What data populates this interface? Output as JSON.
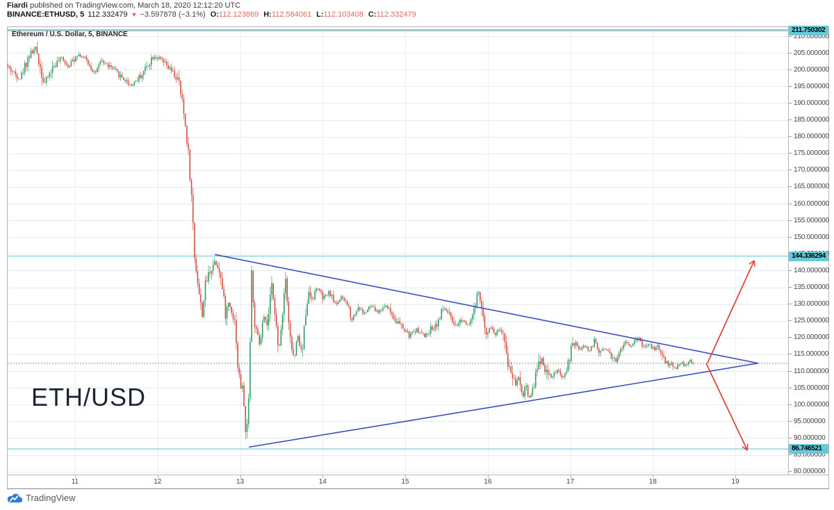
{
  "header": {
    "byline_author": "Fiardi",
    "byline_rest": " published on TradingView.com, March 18, 2020 12:12:20 UTC",
    "quote": {
      "symbol": "BINANCE:ETHUSD, 5",
      "last": "112.332479",
      "direction_icon": "▼",
      "change": "−3.597878 (−3.1%)",
      "ohlc": [
        {
          "label": "O:",
          "value": "112.123869"
        },
        {
          "label": "H:",
          "value": "112.584061"
        },
        {
          "label": "L:",
          "value": "112.103408"
        },
        {
          "label": "C:",
          "value": "112.332479"
        }
      ]
    }
  },
  "chart": {
    "title": "Ethereum / U.S. Dollar, 5, BINANCE",
    "watermark": "ETH/USD"
  },
  "footer": {
    "logo_text": "TradingView"
  },
  "colors": {
    "up": "#2e9b64",
    "down": "#d24f43",
    "trendline": "#3b4cc0",
    "arrow": "#e2453b",
    "level_line": "#79ccd6",
    "level_line_top": "#93bec4",
    "current_dotted": "#6fa287",
    "highlight_bg": "#66cbd6",
    "grid_h": "#e2eff0",
    "grid_v": "#e9eef2",
    "axis_text": "#40434a",
    "border": "#b2b5be"
  },
  "chart_data": {
    "type": "candlestick",
    "title": "Ethereum / U.S. Dollar, 5, BINANCE",
    "symbol": "BINANCE:ETHUSD",
    "interval_minutes": 5,
    "x_axis": {
      "ticks": [
        "11",
        "12",
        "13",
        "14",
        "15",
        "16",
        "17",
        "18",
        "19"
      ],
      "unit": "March 2020 day",
      "day_range": [
        10.183,
        19.639
      ],
      "gridlines": true
    },
    "y_axis": {
      "tick_min": 80,
      "tick_max": 210,
      "tick_step": 5,
      "decimals": 6,
      "price_range": [
        79.1,
        212.3
      ],
      "gridlines": true
    },
    "levels": [
      {
        "price": 211.750302,
        "label": "211.750302"
      },
      {
        "price": 144.336294,
        "label": "144.336294"
      },
      {
        "price": 86.746521,
        "label": "86.746521"
      }
    ],
    "current_price": {
      "price": 112.332479,
      "style": "dotted"
    },
    "candle_step_day": 0.0187,
    "price_path_day_price": [
      [
        10.183,
        201.5
      ],
      [
        10.267,
        199.2
      ],
      [
        10.352,
        197.3
      ],
      [
        10.453,
        204.0
      ],
      [
        10.545,
        206.5
      ],
      [
        10.604,
        200.0
      ],
      [
        10.646,
        195.8
      ],
      [
        10.756,
        201.0
      ],
      [
        10.857,
        203.5
      ],
      [
        10.941,
        201.0
      ],
      [
        11.042,
        204.8
      ],
      [
        11.152,
        203.0
      ],
      [
        11.261,
        199.0
      ],
      [
        11.345,
        202.5
      ],
      [
        11.463,
        200.5
      ],
      [
        11.573,
        198.0
      ],
      [
        11.699,
        195.3
      ],
      [
        11.825,
        198.5
      ],
      [
        11.968,
        204.3
      ],
      [
        12.078,
        202.5
      ],
      [
        12.204,
        199.0
      ],
      [
        12.272,
        196.5
      ],
      [
        12.331,
        188.0
      ],
      [
        12.389,
        176.0
      ],
      [
        12.44,
        158.0
      ],
      [
        12.465,
        144.5
      ],
      [
        12.499,
        138.0
      ],
      [
        12.532,
        131.0
      ],
      [
        12.558,
        126.8
      ],
      [
        12.6,
        136.0
      ],
      [
        12.65,
        140.0
      ],
      [
        12.709,
        142.8
      ],
      [
        12.768,
        140.5
      ],
      [
        12.811,
        133.0
      ],
      [
        12.844,
        126.5
      ],
      [
        12.878,
        130.5
      ],
      [
        12.928,
        127.0
      ],
      [
        12.962,
        124.0
      ],
      [
        12.987,
        112.0
      ],
      [
        13.021,
        106.0
      ],
      [
        13.046,
        104.5
      ],
      [
        13.071,
        99.0
      ],
      [
        13.088,
        88.5
      ],
      [
        13.113,
        97.0
      ],
      [
        13.139,
        118.0
      ],
      [
        13.156,
        141.5
      ],
      [
        13.181,
        127.5
      ],
      [
        13.206,
        122.0
      ],
      [
        13.257,
        117.3
      ],
      [
        13.299,
        126.0
      ],
      [
        13.341,
        123.0
      ],
      [
        13.366,
        127.0
      ],
      [
        13.4,
        135.5
      ],
      [
        13.442,
        128.0
      ],
      [
        13.484,
        114.0
      ],
      [
        13.518,
        124.0
      ],
      [
        13.568,
        138.5
      ],
      [
        13.611,
        124.0
      ],
      [
        13.644,
        116.0
      ],
      [
        13.678,
        113.8
      ],
      [
        13.712,
        121.0
      ],
      [
        13.745,
        117.0
      ],
      [
        13.771,
        114.9
      ],
      [
        13.804,
        126.0
      ],
      [
        13.838,
        133.0
      ],
      [
        13.905,
        132.0
      ],
      [
        13.956,
        135.3
      ],
      [
        14.023,
        131.5
      ],
      [
        14.099,
        133.5
      ],
      [
        14.175,
        130.0
      ],
      [
        14.242,
        131.8
      ],
      [
        14.309,
        130.5
      ],
      [
        14.377,
        125.6
      ],
      [
        14.453,
        129.3
      ],
      [
        14.52,
        127.0
      ],
      [
        14.604,
        129.5
      ],
      [
        14.688,
        127.5
      ],
      [
        14.789,
        129.8
      ],
      [
        14.873,
        126.3
      ],
      [
        14.983,
        123.0
      ],
      [
        15.067,
        120.5
      ],
      [
        15.152,
        122.5
      ],
      [
        15.253,
        120.3
      ],
      [
        15.337,
        122.8
      ],
      [
        15.404,
        124.2
      ],
      [
        15.489,
        129.0
      ],
      [
        15.556,
        126.5
      ],
      [
        15.615,
        122.5
      ],
      [
        15.699,
        125.5
      ],
      [
        15.783,
        124.0
      ],
      [
        15.851,
        127.5
      ],
      [
        15.91,
        134.0
      ],
      [
        15.952,
        126.5
      ],
      [
        15.994,
        121.5
      ],
      [
        16.044,
        123.5
      ],
      [
        16.112,
        121.0
      ],
      [
        16.162,
        123.0
      ],
      [
        16.213,
        119.5
      ],
      [
        16.255,
        113.0
      ],
      [
        16.305,
        109.5
      ],
      [
        16.356,
        106.5
      ],
      [
        16.398,
        109.0
      ],
      [
        16.44,
        101.8
      ],
      [
        16.482,
        106.5
      ],
      [
        16.515,
        101.5
      ],
      [
        16.549,
        103.5
      ],
      [
        16.591,
        108.0
      ],
      [
        16.633,
        111.5
      ],
      [
        16.667,
        114.5
      ],
      [
        16.709,
        110.5
      ],
      [
        16.751,
        109.0
      ],
      [
        16.81,
        108.3
      ],
      [
        16.861,
        110.5
      ],
      [
        16.92,
        107.5
      ],
      [
        16.979,
        111.0
      ],
      [
        17.029,
        116.0
      ],
      [
        17.072,
        118.3
      ],
      [
        17.13,
        116.5
      ],
      [
        17.198,
        117.5
      ],
      [
        17.257,
        116.0
      ],
      [
        17.316,
        119.5
      ],
      [
        17.366,
        115.5
      ],
      [
        17.425,
        117.0
      ],
      [
        17.484,
        115.8
      ],
      [
        17.535,
        114.0
      ],
      [
        17.577,
        112.8
      ],
      [
        17.619,
        116.0
      ],
      [
        17.678,
        119.5
      ],
      [
        17.737,
        117.5
      ],
      [
        17.787,
        118.5
      ],
      [
        17.846,
        119.8
      ],
      [
        17.914,
        117.0
      ],
      [
        17.973,
        118.0
      ],
      [
        18.032,
        116.5
      ],
      [
        18.074,
        117.5
      ],
      [
        18.124,
        115.0
      ],
      [
        18.183,
        112.5
      ],
      [
        18.242,
        112.0
      ],
      [
        18.293,
        110.7
      ],
      [
        18.352,
        112.8
      ],
      [
        18.411,
        111.5
      ],
      [
        18.461,
        113.0
      ],
      [
        18.495,
        112.332479
      ]
    ],
    "drawings": {
      "triangle": {
        "upper_trendline": [
          [
            12.693,
            144.8
          ],
          [
            19.276,
            112.35
          ]
        ],
        "lower_trendline": [
          [
            13.105,
            87.3
          ],
          [
            19.276,
            112.35
          ]
        ]
      },
      "arrows": [
        {
          "direction": "up",
          "from": [
            18.662,
            112.4
          ],
          "to": [
            19.226,
            142.9
          ]
        },
        {
          "direction": "down",
          "from": [
            18.645,
            112.4
          ],
          "to": [
            19.142,
            86.5
          ]
        }
      ]
    }
  }
}
